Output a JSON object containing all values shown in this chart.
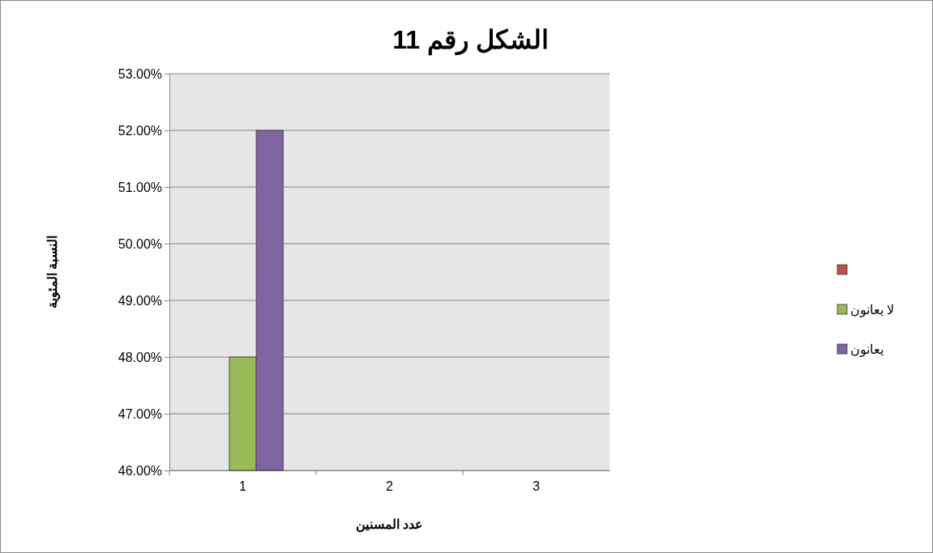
{
  "chart_data": {
    "type": "bar",
    "title": "الشكل رقم 11",
    "xlabel": "عدد المسنين",
    "ylabel": "النسبة المئوية",
    "categories": [
      "1",
      "2",
      "3"
    ],
    "series": [
      {
        "color": "#c0504d",
        "values": [
          null,
          null,
          null
        ]
      },
      {
        "name": "لا يعانون",
        "color": "#9bbb59",
        "values": [
          48,
          null,
          null
        ]
      },
      {
        "name": "يعانون",
        "color": "#8064a2",
        "values": [
          52,
          null,
          null
        ]
      }
    ],
    "ylim": [
      46,
      53
    ],
    "yticks": [
      {
        "value": 46,
        "label": "46.00%"
      },
      {
        "value": 47,
        "label": "47.00%"
      },
      {
        "value": 48,
        "label": "48.00%"
      },
      {
        "value": 49,
        "label": "49.00%"
      },
      {
        "value": 50,
        "label": "50.00%"
      },
      {
        "value": 51,
        "label": "51.00%"
      },
      {
        "value": 52,
        "label": "52.00%"
      },
      {
        "value": 53,
        "label": "53.00%"
      }
    ],
    "grid": "y",
    "legend": "right"
  }
}
